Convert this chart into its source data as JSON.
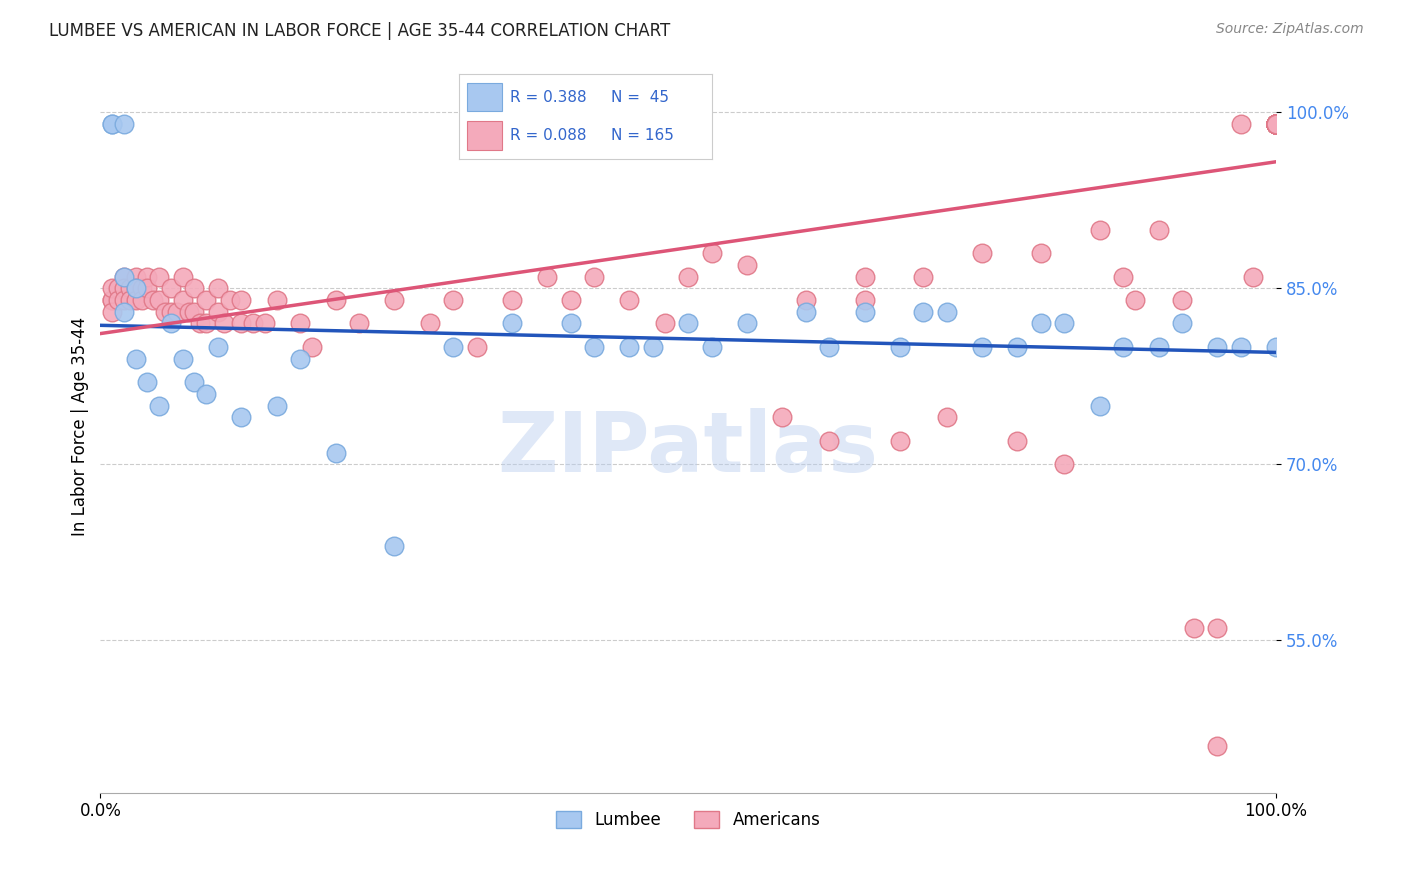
{
  "title": "LUMBEE VS AMERICAN IN LABOR FORCE | AGE 35-44 CORRELATION CHART",
  "source": "Source: ZipAtlas.com",
  "ylabel": "In Labor Force | Age 35-44",
  "ytick_vals": [
    0.55,
    0.7,
    0.85,
    1.0
  ],
  "xlim": [
    0.0,
    1.0
  ],
  "ylim": [
    0.42,
    1.045
  ],
  "lumbee_color": "#A8C8F0",
  "americans_color": "#F4AABB",
  "lumbee_edge": "#7AAADE",
  "americans_edge": "#E07888",
  "blue_line_color": "#2255BB",
  "pink_line_color": "#DD5577",
  "legend_R_lumbee": "R = 0.388",
  "legend_N_lumbee": "N =  45",
  "legend_R_americans": "R = 0.088",
  "legend_N_americans": "N = 165",
  "watermark": "ZIPatlas",
  "lumbee_x": [
    0.01,
    0.01,
    0.02,
    0.02,
    0.02,
    0.03,
    0.03,
    0.04,
    0.05,
    0.06,
    0.07,
    0.08,
    0.09,
    0.1,
    0.12,
    0.15,
    0.17,
    0.2,
    0.25,
    0.3,
    0.35,
    0.4,
    0.42,
    0.45,
    0.47,
    0.5,
    0.52,
    0.55,
    0.6,
    0.62,
    0.65,
    0.68,
    0.7,
    0.72,
    0.75,
    0.78,
    0.8,
    0.82,
    0.85,
    0.87,
    0.9,
    0.92,
    0.95,
    0.97,
    1.0
  ],
  "lumbee_y": [
    0.99,
    0.99,
    0.99,
    0.86,
    0.83,
    0.85,
    0.79,
    0.77,
    0.75,
    0.82,
    0.79,
    0.77,
    0.76,
    0.8,
    0.74,
    0.75,
    0.79,
    0.71,
    0.63,
    0.8,
    0.82,
    0.82,
    0.8,
    0.8,
    0.8,
    0.82,
    0.8,
    0.82,
    0.83,
    0.8,
    0.83,
    0.8,
    0.83,
    0.83,
    0.8,
    0.8,
    0.82,
    0.82,
    0.75,
    0.8,
    0.8,
    0.82,
    0.8,
    0.8,
    0.8
  ],
  "americans_x": [
    0.01,
    0.01,
    0.01,
    0.01,
    0.015,
    0.015,
    0.02,
    0.02,
    0.02,
    0.025,
    0.025,
    0.03,
    0.03,
    0.03,
    0.035,
    0.035,
    0.04,
    0.04,
    0.045,
    0.05,
    0.05,
    0.055,
    0.06,
    0.06,
    0.065,
    0.07,
    0.07,
    0.075,
    0.08,
    0.08,
    0.085,
    0.09,
    0.09,
    0.1,
    0.1,
    0.105,
    0.11,
    0.12,
    0.12,
    0.13,
    0.14,
    0.15,
    0.17,
    0.18,
    0.2,
    0.22,
    0.25,
    0.28,
    0.3,
    0.32,
    0.35,
    0.38,
    0.4,
    0.42,
    0.45,
    0.48,
    0.5,
    0.52,
    0.55,
    0.58,
    0.6,
    0.62,
    0.65,
    0.65,
    0.68,
    0.7,
    0.72,
    0.75,
    0.78,
    0.8,
    0.82,
    0.85,
    0.87,
    0.88,
    0.9,
    0.92,
    0.93,
    0.95,
    0.95,
    0.97,
    0.98,
    1.0,
    1.0,
    1.0,
    1.0,
    1.0,
    1.0,
    1.0,
    1.0,
    1.0,
    1.0,
    1.0,
    1.0,
    1.0,
    1.0,
    1.0,
    1.0,
    1.0,
    1.0,
    1.0,
    1.0,
    1.0,
    1.0,
    1.0,
    1.0,
    1.0,
    1.0,
    1.0,
    1.0,
    1.0,
    1.0,
    1.0,
    1.0,
    1.0,
    1.0,
    1.0,
    1.0,
    1.0,
    1.0,
    1.0,
    1.0,
    1.0,
    1.0,
    1.0,
    1.0,
    1.0,
    1.0,
    1.0,
    1.0,
    1.0,
    1.0,
    1.0,
    1.0,
    1.0,
    1.0,
    1.0,
    1.0,
    1.0,
    1.0,
    1.0,
    1.0,
    1.0,
    1.0,
    1.0,
    1.0,
    1.0,
    1.0,
    1.0,
    1.0,
    1.0,
    1.0,
    1.0,
    1.0,
    1.0,
    1.0,
    1.0,
    1.0,
    1.0,
    1.0,
    1.0,
    1.0,
    1.0,
    1.0,
    1.0,
    1.0,
    1.0
  ],
  "americans_y": [
    0.84,
    0.84,
    0.85,
    0.83,
    0.85,
    0.84,
    0.86,
    0.85,
    0.84,
    0.85,
    0.84,
    0.86,
    0.85,
    0.84,
    0.85,
    0.84,
    0.86,
    0.85,
    0.84,
    0.86,
    0.84,
    0.83,
    0.85,
    0.83,
    0.83,
    0.86,
    0.84,
    0.83,
    0.85,
    0.83,
    0.82,
    0.84,
    0.82,
    0.85,
    0.83,
    0.82,
    0.84,
    0.84,
    0.82,
    0.82,
    0.82,
    0.84,
    0.82,
    0.8,
    0.84,
    0.82,
    0.84,
    0.82,
    0.84,
    0.8,
    0.84,
    0.86,
    0.84,
    0.86,
    0.84,
    0.82,
    0.86,
    0.88,
    0.87,
    0.74,
    0.84,
    0.72,
    0.86,
    0.84,
    0.72,
    0.86,
    0.74,
    0.88,
    0.72,
    0.88,
    0.7,
    0.9,
    0.86,
    0.84,
    0.9,
    0.84,
    0.56,
    0.56,
    0.46,
    0.99,
    0.86,
    0.99,
    0.99,
    0.99,
    0.99,
    0.99,
    0.99,
    0.99,
    0.99,
    0.99,
    0.99,
    0.99,
    0.99,
    0.99,
    0.99,
    0.99,
    0.99,
    0.99,
    0.99,
    0.99,
    0.99,
    0.99,
    0.99,
    0.99,
    0.99,
    0.99,
    0.99,
    0.99,
    0.99,
    0.99,
    0.99,
    0.99,
    0.99,
    0.99,
    0.99,
    0.99,
    0.99,
    0.99,
    0.99,
    0.99,
    0.99,
    0.99,
    0.99,
    0.99,
    0.99,
    0.99,
    0.99,
    0.99,
    0.99,
    0.99,
    0.99,
    0.99,
    0.99,
    0.99,
    0.99,
    0.99,
    0.99,
    0.99,
    0.99,
    0.99,
    0.99,
    0.99,
    0.99,
    0.99,
    0.99,
    0.99,
    0.99,
    0.99,
    0.99,
    0.99,
    0.99,
    0.99,
    0.99,
    0.99,
    0.99,
    0.99,
    0.99,
    0.99,
    0.99,
    0.99,
    0.99,
    0.99,
    0.99,
    0.99,
    0.99,
    0.99
  ]
}
